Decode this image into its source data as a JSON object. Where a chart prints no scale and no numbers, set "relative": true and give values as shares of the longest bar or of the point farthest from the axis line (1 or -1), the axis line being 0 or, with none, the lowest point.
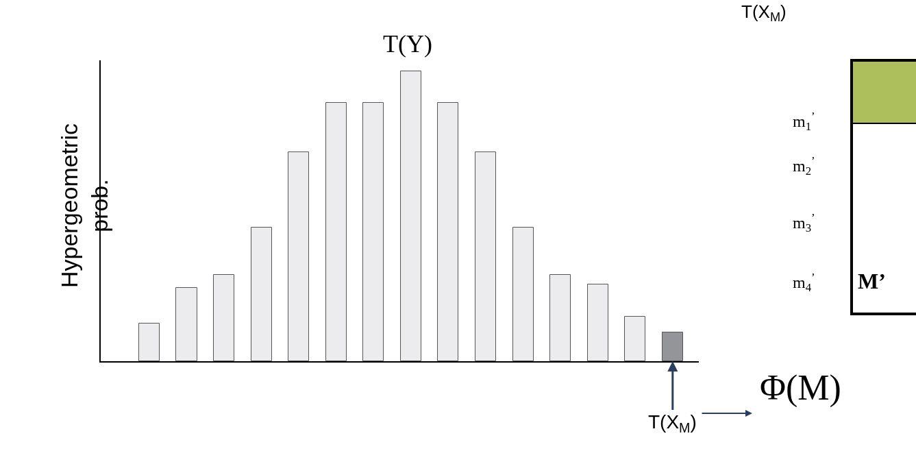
{
  "chart_data": [
    {
      "type": "bar",
      "title": "T(Y)",
      "ylabel": "Hypergeometric\nprob.",
      "relative": true,
      "categories": [
        null,
        null,
        null,
        null,
        null,
        null,
        null,
        null,
        null,
        null,
        null,
        null,
        null,
        null,
        null
      ],
      "values": [
        0.13,
        0.253,
        0.298,
        0.461,
        0.721,
        0.891,
        0.891,
        1.0,
        0.891,
        0.721,
        0.461,
        0.298,
        0.265,
        0.154,
        0.099
      ],
      "colors": [
        "#ececee",
        "#ececee",
        "#ececee",
        "#ececee",
        "#ececee",
        "#ececee",
        "#ececee",
        "#ececee",
        "#ececee",
        "#ececee",
        "#ececee",
        "#ececee",
        "#ececee",
        "#ececee",
        "#939598"
      ],
      "annotations": [
        "T(X$_{M}$)",
        "Φ(M)"
      ]
    },
    {
      "type": "other",
      "title": "T(X$_{M}$)",
      "color": "#adbe5c",
      "annotations": [
        "m$_{1}$$^{’}$",
        "m$_{2}$$^{’}$",
        "m$_{3}$$^{’}$",
        "m$_{4}$$^{’}$",
        "M’"
      ]
    }
  ]
}
